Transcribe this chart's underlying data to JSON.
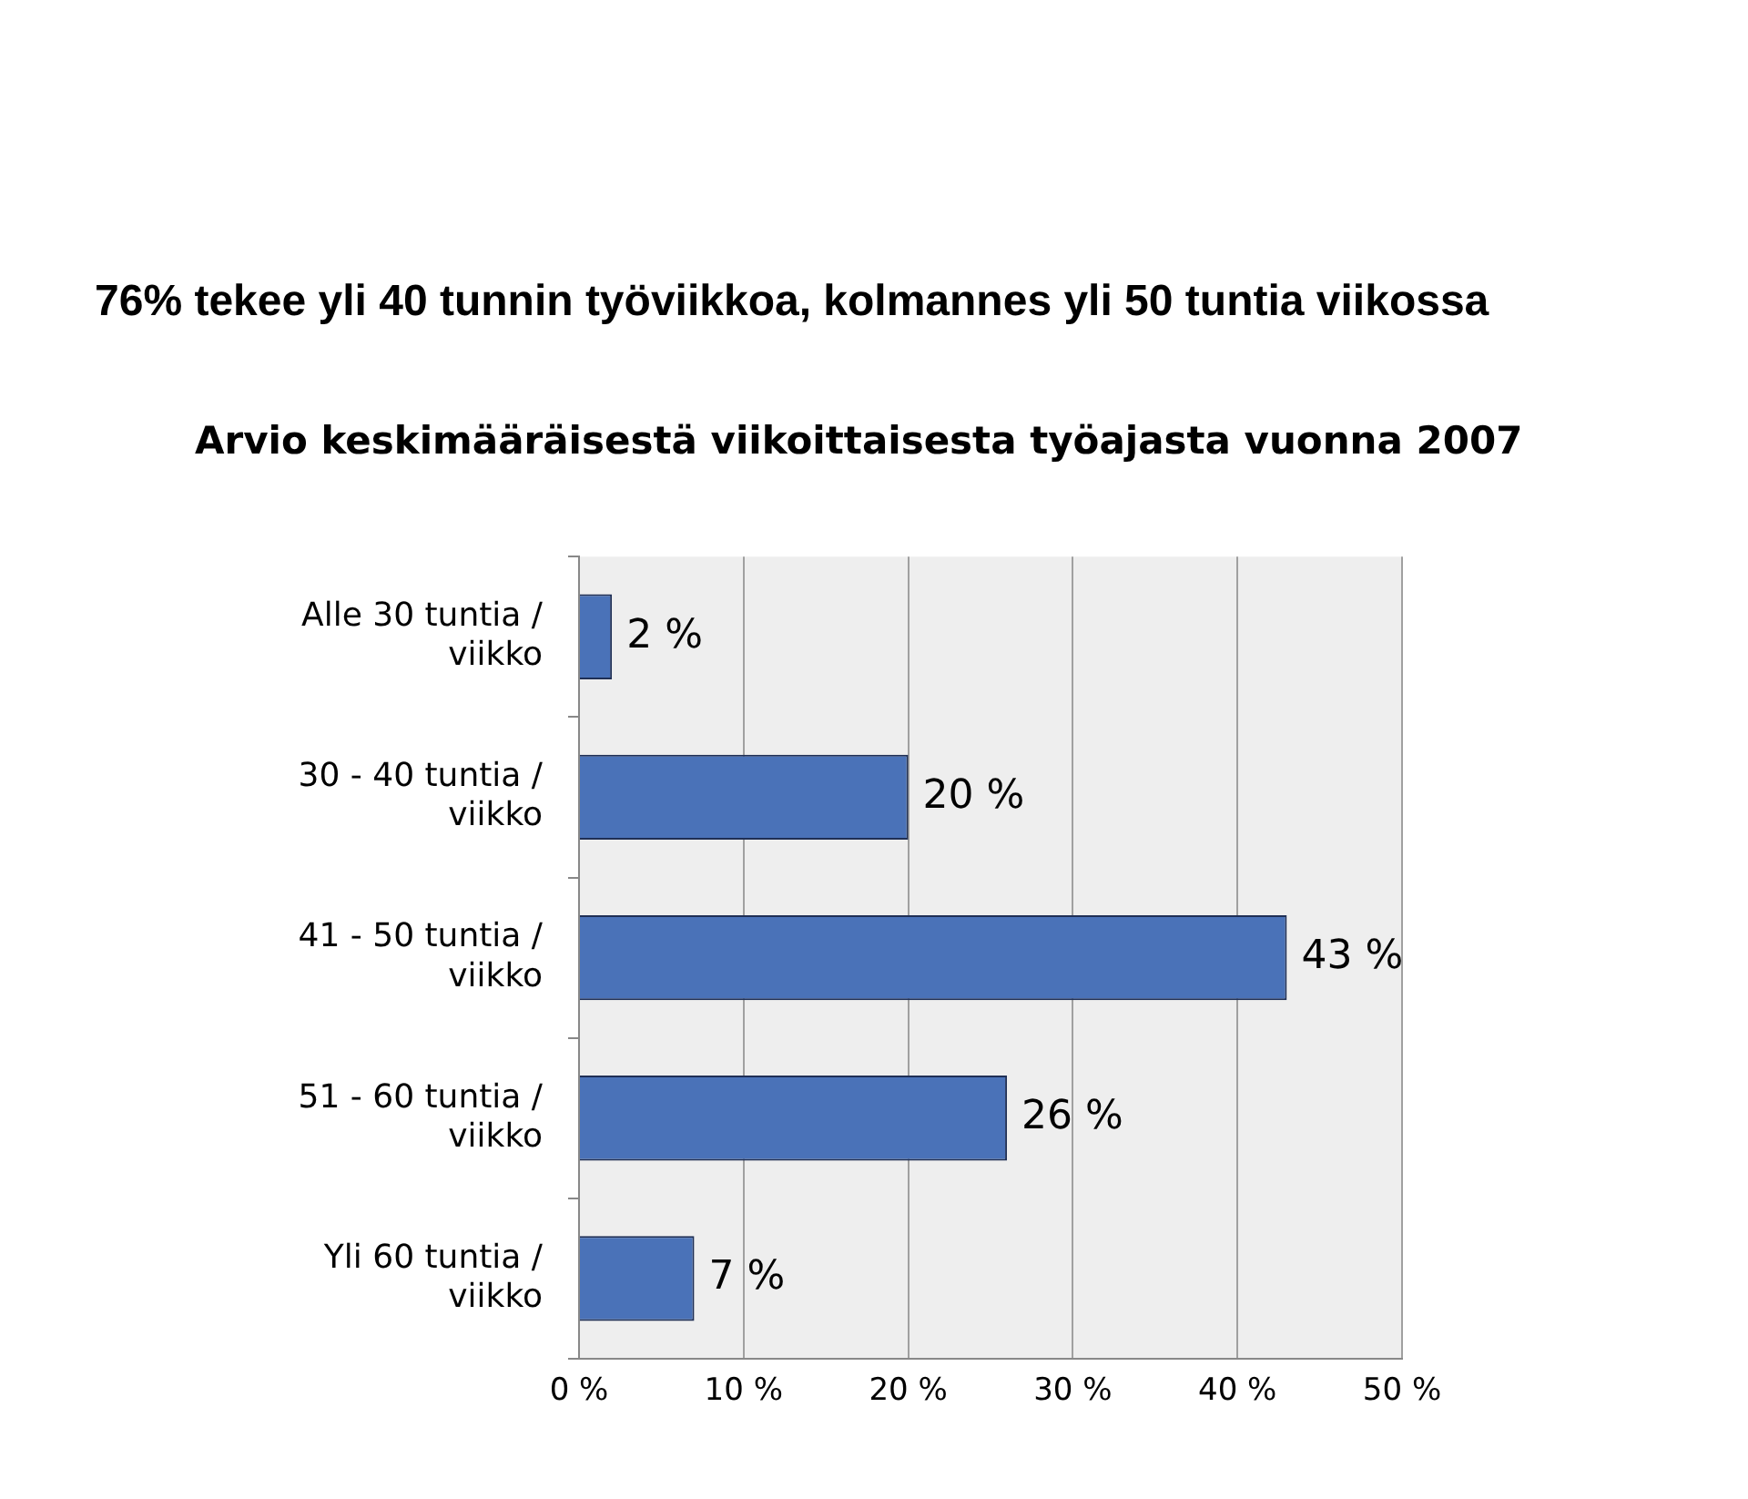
{
  "chart_data": {
    "type": "bar",
    "orientation": "horizontal",
    "title": "76% tekee yli 40 tunnin työviikkoa, kolmannes yli 50 tuntia viikossa",
    "subtitle": "Arvio keskimääräisestä viikoittaisesta työajasta vuonna 2007",
    "categories": [
      "Alle 30 tuntia / viikko",
      "30 - 40 tuntia / viikko",
      "41 - 50 tuntia / viikko",
      "51 - 60 tuntia / viikko",
      "Yli 60 tuntia / viikko"
    ],
    "values": [
      2,
      20,
      43,
      26,
      7
    ],
    "value_labels": [
      "2 %",
      "20 %",
      "43 %",
      "26 %",
      "7 %"
    ],
    "color": "#4a72b8",
    "xlim": [
      0,
      50
    ],
    "xticks": [
      {
        "value": 0,
        "label": "0 %"
      },
      {
        "value": 10,
        "label": "10 %"
      },
      {
        "value": 20,
        "label": "20 %"
      },
      {
        "value": 30,
        "label": "30 %"
      },
      {
        "value": 40,
        "label": "40 %"
      },
      {
        "value": 50,
        "label": "50 %"
      }
    ],
    "grid": "x",
    "legend": false
  }
}
